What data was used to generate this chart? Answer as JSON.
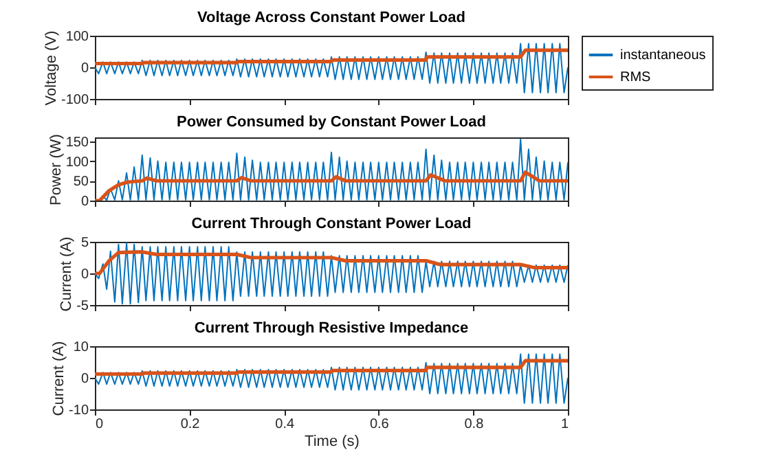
{
  "chart_data": [
    {
      "type": "line",
      "title": "Voltage Across Constant Power Load",
      "ylabel": "Voltage (V)",
      "xlim": [
        0,
        1
      ],
      "xticks": [
        0,
        0.2,
        0.4,
        0.6,
        0.8,
        1
      ],
      "ylim": [
        -100,
        100
      ],
      "yticks": [
        -100,
        0,
        100
      ],
      "tick_labels": "y",
      "legend": "right",
      "x": [
        0,
        0.008,
        0.017,
        0.025,
        0.033,
        0.042,
        0.05,
        0.058,
        0.067,
        0.075,
        0.083,
        0.092,
        0.1,
        0.108,
        0.117,
        0.125,
        0.133,
        0.142,
        0.15,
        0.158,
        0.167,
        0.175,
        0.183,
        0.192,
        0.2,
        0.208,
        0.217,
        0.225,
        0.233,
        0.242,
        0.25,
        0.258,
        0.267,
        0.275,
        0.283,
        0.292,
        0.3,
        0.308,
        0.317,
        0.325,
        0.333,
        0.342,
        0.35,
        0.358,
        0.367,
        0.375,
        0.383,
        0.392,
        0.4,
        0.408,
        0.417,
        0.425,
        0.433,
        0.442,
        0.45,
        0.458,
        0.467,
        0.475,
        0.483,
        0.492,
        0.5,
        0.508,
        0.517,
        0.525,
        0.533,
        0.542,
        0.55,
        0.558,
        0.567,
        0.575,
        0.583,
        0.592,
        0.6,
        0.608,
        0.617,
        0.625,
        0.633,
        0.642,
        0.65,
        0.658,
        0.667,
        0.675,
        0.683,
        0.692,
        0.7,
        0.708,
        0.717,
        0.725,
        0.733,
        0.742,
        0.75,
        0.758,
        0.767,
        0.775,
        0.783,
        0.792,
        0.8,
        0.808,
        0.817,
        0.825,
        0.833,
        0.842,
        0.85,
        0.858,
        0.867,
        0.875,
        0.883,
        0.892,
        0.9,
        0.908,
        0.917,
        0.925,
        0.933,
        0.942,
        0.95,
        0.958,
        0.967,
        0.975,
        0.983,
        0.992,
        1
      ],
      "series": [
        {
          "name": "instantaneous",
          "color": "#0072bd",
          "values": [
            0,
            -20,
            17,
            -20,
            17,
            -20,
            17,
            -20,
            17,
            -20,
            17,
            -20,
            22,
            -26,
            22,
            -26,
            22,
            -26,
            22,
            -26,
            22,
            -26,
            22,
            -26,
            22,
            -26,
            22,
            -26,
            22,
            -26,
            22,
            -26,
            22,
            -26,
            22,
            -26,
            26,
            -30,
            26,
            -30,
            26,
            -30,
            26,
            -30,
            26,
            -30,
            26,
            -30,
            26,
            -30,
            26,
            -30,
            26,
            -30,
            26,
            -30,
            26,
            -30,
            26,
            -30,
            33,
            -38,
            33,
            -38,
            33,
            -38,
            33,
            -38,
            33,
            -38,
            33,
            -38,
            33,
            -38,
            33,
            -38,
            33,
            -38,
            33,
            -38,
            33,
            -38,
            33,
            -38,
            48,
            -50,
            45,
            -50,
            45,
            -50,
            45,
            -50,
            45,
            -50,
            45,
            -50,
            45,
            -50,
            45,
            -50,
            45,
            -50,
            45,
            -50,
            45,
            -50,
            45,
            -50,
            75,
            -80,
            75,
            -80,
            75,
            -80,
            75,
            -80,
            75,
            -80,
            75,
            -80,
            0
          ]
        },
        {
          "name": "RMS",
          "color": "#d95319",
          "x": [
            0,
            0.1,
            0.102,
            0.3,
            0.302,
            0.5,
            0.502,
            0.7,
            0.702,
            0.9,
            0.91,
            1
          ],
          "values": [
            12,
            12,
            15,
            15,
            18,
            18,
            23,
            23,
            33,
            33,
            54,
            54
          ]
        }
      ]
    },
    {
      "type": "line",
      "title": "Power Consumed by Constant Power Load",
      "ylabel": "Power (W)",
      "xlim": [
        0,
        1
      ],
      "xticks": [
        0,
        0.2,
        0.4,
        0.6,
        0.8,
        1
      ],
      "ylim": [
        0,
        160
      ],
      "yticks": [
        0,
        50,
        100,
        150
      ],
      "tick_labels": "y",
      "x": [
        0,
        0.008,
        0.017,
        0.025,
        0.033,
        0.042,
        0.05,
        0.058,
        0.067,
        0.075,
        0.083,
        0.092,
        0.1,
        0.108,
        0.117,
        0.125,
        0.133,
        0.142,
        0.15,
        0.158,
        0.167,
        0.175,
        0.183,
        0.192,
        0.2,
        0.208,
        0.217,
        0.225,
        0.233,
        0.242,
        0.25,
        0.258,
        0.267,
        0.275,
        0.283,
        0.292,
        0.3,
        0.308,
        0.317,
        0.325,
        0.333,
        0.342,
        0.35,
        0.358,
        0.367,
        0.375,
        0.383,
        0.392,
        0.4,
        0.408,
        0.417,
        0.425,
        0.433,
        0.442,
        0.45,
        0.458,
        0.467,
        0.475,
        0.483,
        0.492,
        0.5,
        0.508,
        0.517,
        0.525,
        0.533,
        0.542,
        0.55,
        0.558,
        0.567,
        0.575,
        0.583,
        0.592,
        0.6,
        0.608,
        0.617,
        0.625,
        0.633,
        0.642,
        0.65,
        0.658,
        0.667,
        0.675,
        0.683,
        0.692,
        0.7,
        0.708,
        0.717,
        0.725,
        0.733,
        0.742,
        0.75,
        0.758,
        0.767,
        0.775,
        0.783,
        0.792,
        0.8,
        0.808,
        0.817,
        0.825,
        0.833,
        0.842,
        0.85,
        0.858,
        0.867,
        0.875,
        0.883,
        0.892,
        0.9,
        0.908,
        0.917,
        0.925,
        0.933,
        0.942,
        0.95,
        0.958,
        0.967,
        0.975,
        0.983,
        0.992,
        1
      ],
      "series": [
        {
          "color": "#0072bd",
          "values": [
            0,
            0,
            12,
            1,
            30,
            2,
            50,
            2,
            70,
            2,
            85,
            2,
            115,
            2,
            108,
            2,
            100,
            2,
            97,
            2,
            97,
            2,
            97,
            2,
            97,
            2,
            97,
            2,
            97,
            2,
            97,
            2,
            97,
            2,
            97,
            2,
            120,
            2,
            110,
            2,
            102,
            2,
            97,
            2,
            97,
            2,
            97,
            2,
            97,
            2,
            97,
            2,
            97,
            2,
            97,
            2,
            97,
            2,
            97,
            2,
            122,
            2,
            110,
            2,
            100,
            2,
            97,
            2,
            97,
            2,
            97,
            2,
            97,
            2,
            97,
            2,
            97,
            2,
            97,
            2,
            97,
            2,
            97,
            2,
            130,
            2,
            115,
            2,
            102,
            2,
            97,
            2,
            97,
            2,
            97,
            2,
            97,
            2,
            97,
            2,
            97,
            2,
            97,
            2,
            97,
            2,
            97,
            2,
            155,
            2,
            130,
            2,
            110,
            2,
            100,
            2,
            97,
            2,
            97,
            2,
            97
          ]
        },
        {
          "color": "#d95319",
          "x": [
            0,
            0.01,
            0.03,
            0.05,
            0.07,
            0.1,
            0.11,
            0.13,
            0.3,
            0.31,
            0.33,
            0.5,
            0.51,
            0.53,
            0.7,
            0.71,
            0.74,
            0.9,
            0.91,
            0.94,
            1
          ],
          "values": [
            0,
            0,
            25,
            40,
            47,
            50,
            57,
            50,
            50,
            58,
            50,
            50,
            60,
            50,
            50,
            65,
            50,
            50,
            72,
            50,
            50
          ]
        }
      ]
    },
    {
      "type": "line",
      "title": "Current Through Constant Power Load",
      "ylabel": "Current (A)",
      "xlim": [
        0,
        1
      ],
      "xticks": [
        0,
        0.2,
        0.4,
        0.6,
        0.8,
        1
      ],
      "ylim": [
        -5,
        5
      ],
      "yticks": [
        -5,
        0,
        5
      ],
      "tick_labels": "y",
      "x": [
        0,
        0.008,
        0.017,
        0.025,
        0.033,
        0.042,
        0.05,
        0.058,
        0.067,
        0.075,
        0.083,
        0.092,
        0.1,
        0.108,
        0.117,
        0.125,
        0.133,
        0.142,
        0.15,
        0.158,
        0.167,
        0.175,
        0.183,
        0.192,
        0.2,
        0.208,
        0.217,
        0.225,
        0.233,
        0.242,
        0.25,
        0.258,
        0.267,
        0.275,
        0.283,
        0.292,
        0.3,
        0.308,
        0.317,
        0.325,
        0.333,
        0.342,
        0.35,
        0.358,
        0.367,
        0.375,
        0.383,
        0.392,
        0.4,
        0.408,
        0.417,
        0.425,
        0.433,
        0.442,
        0.45,
        0.458,
        0.467,
        0.475,
        0.483,
        0.492,
        0.5,
        0.508,
        0.517,
        0.525,
        0.533,
        0.542,
        0.55,
        0.558,
        0.567,
        0.575,
        0.583,
        0.592,
        0.6,
        0.608,
        0.617,
        0.625,
        0.633,
        0.642,
        0.65,
        0.658,
        0.667,
        0.675,
        0.683,
        0.692,
        0.7,
        0.708,
        0.717,
        0.725,
        0.733,
        0.742,
        0.75,
        0.758,
        0.767,
        0.775,
        0.783,
        0.792,
        0.8,
        0.808,
        0.817,
        0.825,
        0.833,
        0.842,
        0.85,
        0.858,
        0.867,
        0.875,
        0.883,
        0.892,
        0.9,
        0.908,
        0.917,
        0.925,
        0.933,
        0.942,
        0.95,
        0.958,
        0.967,
        0.975,
        0.983,
        0.992,
        1
      ],
      "series": [
        {
          "color": "#0072bd",
          "values": [
            0,
            -0.8,
            1.5,
            -2.5,
            3.5,
            -4.5,
            4.6,
            -4.8,
            4.8,
            -4.8,
            4.6,
            -4.6,
            4.2,
            -4.3,
            4.2,
            -4.3,
            4.2,
            -4.3,
            4.2,
            -4.3,
            4.2,
            -4.3,
            4.2,
            -4.3,
            4.2,
            -4.3,
            4.2,
            -4.3,
            4.2,
            -4.3,
            4.2,
            -4.3,
            4.2,
            -4.3,
            4.2,
            -4.3,
            3.4,
            -3.6,
            3.4,
            -3.6,
            3.4,
            -3.6,
            3.4,
            -3.6,
            3.4,
            -3.6,
            3.4,
            -3.6,
            3.4,
            -3.6,
            3.4,
            -3.6,
            3.4,
            -3.6,
            3.4,
            -3.6,
            3.4,
            -3.6,
            3.4,
            -3.6,
            2.8,
            -3,
            2.8,
            -3,
            2.8,
            -3,
            2.8,
            -3,
            2.8,
            -3,
            2.8,
            -3,
            2.8,
            -3,
            2.8,
            -3,
            2.8,
            -3,
            2.8,
            -3,
            2.8,
            -3,
            2.8,
            -3,
            1.9,
            -2.1,
            1.9,
            -2.1,
            1.9,
            -2.1,
            1.9,
            -2.1,
            1.9,
            -2.1,
            1.9,
            -2.1,
            1.9,
            -2.1,
            1.9,
            -2.1,
            1.9,
            -2.1,
            1.9,
            -2.1,
            1.9,
            -2.1,
            1.9,
            -2.1,
            1.3,
            -1.4,
            1.3,
            -1.4,
            1.3,
            -1.4,
            1.3,
            -1.4,
            1.3,
            -1.4,
            1.3,
            -1.4,
            1.3
          ]
        },
        {
          "color": "#d95319",
          "x": [
            0,
            0.01,
            0.03,
            0.05,
            0.1,
            0.13,
            0.3,
            0.33,
            0.5,
            0.53,
            0.7,
            0.73,
            0.9,
            0.93,
            1
          ],
          "values": [
            0,
            0,
            2,
            3.3,
            3.4,
            3,
            3,
            2.5,
            2.5,
            2,
            2,
            1.4,
            1.4,
            0.9,
            0.9
          ]
        }
      ]
    },
    {
      "type": "line",
      "title": "Current Through Resistive Impedance",
      "xlabel": "Time (s)",
      "ylabel": "Current (A)",
      "xlim": [
        0,
        1
      ],
      "xticks": [
        0,
        0.2,
        0.4,
        0.6,
        0.8,
        1
      ],
      "ylim": [
        -10,
        10
      ],
      "yticks": [
        -10,
        0,
        10
      ],
      "x": [
        0,
        0.008,
        0.017,
        0.025,
        0.033,
        0.042,
        0.05,
        0.058,
        0.067,
        0.075,
        0.083,
        0.092,
        0.1,
        0.108,
        0.117,
        0.125,
        0.133,
        0.142,
        0.15,
        0.158,
        0.167,
        0.175,
        0.183,
        0.192,
        0.2,
        0.208,
        0.217,
        0.225,
        0.233,
        0.242,
        0.25,
        0.258,
        0.267,
        0.275,
        0.283,
        0.292,
        0.3,
        0.308,
        0.317,
        0.325,
        0.333,
        0.342,
        0.35,
        0.358,
        0.367,
        0.375,
        0.383,
        0.392,
        0.4,
        0.408,
        0.417,
        0.425,
        0.433,
        0.442,
        0.45,
        0.458,
        0.467,
        0.475,
        0.483,
        0.492,
        0.5,
        0.508,
        0.517,
        0.525,
        0.533,
        0.542,
        0.55,
        0.558,
        0.567,
        0.575,
        0.583,
        0.592,
        0.6,
        0.608,
        0.617,
        0.625,
        0.633,
        0.642,
        0.65,
        0.658,
        0.667,
        0.675,
        0.683,
        0.692,
        0.7,
        0.708,
        0.717,
        0.725,
        0.733,
        0.742,
        0.75,
        0.758,
        0.767,
        0.775,
        0.783,
        0.792,
        0.8,
        0.808,
        0.817,
        0.825,
        0.833,
        0.842,
        0.85,
        0.858,
        0.867,
        0.875,
        0.883,
        0.892,
        0.9,
        0.908,
        0.917,
        0.925,
        0.933,
        0.942,
        0.95,
        0.958,
        0.967,
        0.975,
        0.983,
        0.992,
        1
      ],
      "series": [
        {
          "color": "#0072bd",
          "values": [
            0,
            -2,
            1.7,
            -2,
            1.7,
            -2,
            1.7,
            -2,
            1.7,
            -2,
            1.7,
            -2,
            2.2,
            -2.6,
            2.2,
            -2.6,
            2.2,
            -2.6,
            2.2,
            -2.6,
            2.2,
            -2.6,
            2.2,
            -2.6,
            2.2,
            -2.6,
            2.2,
            -2.6,
            2.2,
            -2.6,
            2.2,
            -2.6,
            2.2,
            -2.6,
            2.2,
            -2.6,
            2.6,
            -3,
            2.6,
            -3,
            2.6,
            -3,
            2.6,
            -3,
            2.6,
            -3,
            2.6,
            -3,
            2.6,
            -3,
            2.6,
            -3,
            2.6,
            -3,
            2.6,
            -3,
            2.6,
            -3,
            2.6,
            -3,
            3.3,
            -3.8,
            3.3,
            -3.8,
            3.3,
            -3.8,
            3.3,
            -3.8,
            3.3,
            -3.8,
            3.3,
            -3.8,
            3.3,
            -3.8,
            3.3,
            -3.8,
            3.3,
            -3.8,
            3.3,
            -3.8,
            3.3,
            -3.8,
            3.3,
            -3.8,
            4.8,
            -5,
            4.5,
            -5,
            4.5,
            -5,
            4.5,
            -5,
            4.5,
            -5,
            4.5,
            -5,
            4.5,
            -5,
            4.5,
            -5,
            4.5,
            -5,
            4.5,
            -5,
            4.5,
            -5,
            4.5,
            -5,
            7.5,
            -8,
            7.5,
            -8,
            7.5,
            -8,
            7.5,
            -8,
            7.5,
            -8,
            7.5,
            -8,
            0
          ]
        },
        {
          "color": "#d95319",
          "x": [
            0,
            0.1,
            0.102,
            0.3,
            0.302,
            0.5,
            0.502,
            0.7,
            0.702,
            0.9,
            0.91,
            1
          ],
          "values": [
            1.2,
            1.2,
            1.5,
            1.5,
            1.8,
            1.8,
            2.3,
            2.3,
            3.3,
            3.3,
            5.4,
            5.4
          ]
        }
      ]
    }
  ]
}
